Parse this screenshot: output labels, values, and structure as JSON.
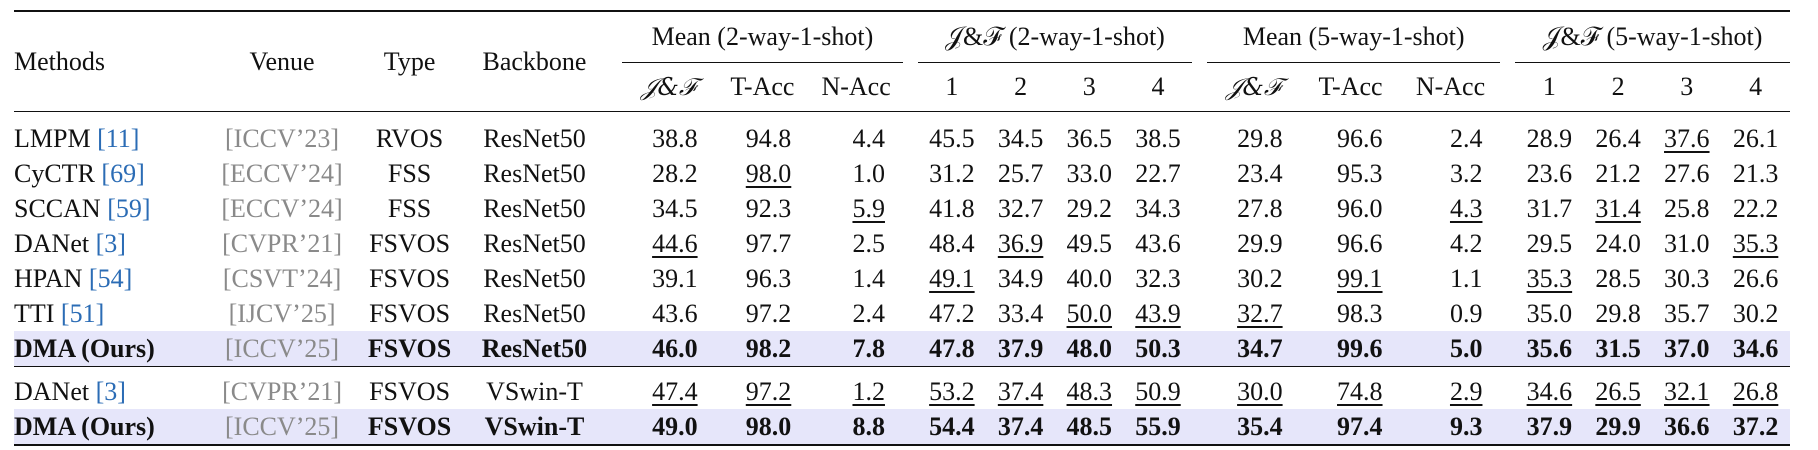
{
  "header": {
    "methods": "Methods",
    "venue": "Venue",
    "type": "Type",
    "backbone": "Backbone",
    "groups": [
      "Mean (2-way-1-shot)",
      "𝒥&ℱ (2-way-1-shot)",
      "Mean (5-way-1-shot)",
      "𝒥&ℱ (5-way-1-shot)"
    ],
    "mean_cols": [
      "𝒥&ℱ",
      "T-Acc",
      "N-Acc"
    ],
    "jf_cols": [
      "1",
      "2",
      "3",
      "4"
    ]
  },
  "rows": [
    {
      "method": "LMPM",
      "ref": "[11]",
      "venue": "[ICCV’23]",
      "type": "RVOS",
      "backbone": "ResNet50",
      "ours": false,
      "vals": [
        "38.8",
        "94.8",
        "4.4",
        "45.5",
        "34.5",
        "36.5",
        "38.5",
        "29.8",
        "96.6",
        "2.4",
        "28.9",
        "26.4",
        "37.6",
        "26.1"
      ]
    },
    {
      "method": "CyCTR",
      "ref": "[69]",
      "venue": "[ECCV’24]",
      "type": "FSS",
      "backbone": "ResNet50",
      "ours": false,
      "vals": [
        "28.2",
        "98.0",
        "1.0",
        "31.2",
        "25.7",
        "33.0",
        "22.7",
        "23.4",
        "95.3",
        "3.2",
        "23.6",
        "21.2",
        "27.6",
        "21.3"
      ]
    },
    {
      "method": "SCCAN",
      "ref": "[59]",
      "venue": "[ECCV’24]",
      "type": "FSS",
      "backbone": "ResNet50",
      "ours": false,
      "vals": [
        "34.5",
        "92.3",
        "5.9",
        "41.8",
        "32.7",
        "29.2",
        "34.3",
        "27.8",
        "96.0",
        "4.3",
        "31.7",
        "31.4",
        "25.8",
        "22.2"
      ]
    },
    {
      "method": "DANet",
      "ref": "[3]",
      "venue": "[CVPR’21]",
      "type": "FSVOS",
      "backbone": "ResNet50",
      "ours": false,
      "vals": [
        "44.6",
        "97.7",
        "2.5",
        "48.4",
        "36.9",
        "49.5",
        "43.6",
        "29.9",
        "96.6",
        "4.2",
        "29.5",
        "24.0",
        "31.0",
        "35.3"
      ]
    },
    {
      "method": "HPAN",
      "ref": "[54]",
      "venue": "[CSVT’24]",
      "type": "FSVOS",
      "backbone": "ResNet50",
      "ours": false,
      "vals": [
        "39.1",
        "96.3",
        "1.4",
        "49.1",
        "34.9",
        "40.0",
        "32.3",
        "30.2",
        "99.1",
        "1.1",
        "35.3",
        "28.5",
        "30.3",
        "26.6"
      ]
    },
    {
      "method": "TTI",
      "ref": "[51]",
      "venue": "[IJCV’25]",
      "type": "FSVOS",
      "backbone": "ResNet50",
      "ours": false,
      "vals": [
        "43.6",
        "97.2",
        "2.4",
        "47.2",
        "33.4",
        "50.0",
        "43.9",
        "32.7",
        "98.3",
        "0.9",
        "35.0",
        "29.8",
        "35.7",
        "30.2"
      ]
    },
    {
      "method": "DMA (Ours)",
      "ref": "",
      "venue": "[ICCV’25]",
      "type": "FSVOS",
      "backbone": "ResNet50",
      "ours": true,
      "vals": [
        "46.0",
        "98.2",
        "7.8",
        "47.8",
        "37.9",
        "48.0",
        "50.3",
        "34.7",
        "99.6",
        "5.0",
        "35.6",
        "31.5",
        "37.0",
        "34.6"
      ]
    },
    {
      "method": "DANet",
      "ref": "[3]",
      "venue": "[CVPR’21]",
      "type": "FSVOS",
      "backbone": "VSwin-T",
      "ours": false,
      "vals": [
        "47.4",
        "97.2",
        "1.2",
        "53.2",
        "37.4",
        "48.3",
        "50.9",
        "30.0",
        "74.8",
        "2.9",
        "34.6",
        "26.5",
        "32.1",
        "26.8"
      ]
    },
    {
      "method": "DMA (Ours)",
      "ref": "",
      "venue": "[ICCV’25]",
      "type": "FSVOS",
      "backbone": "VSwin-T",
      "ours": true,
      "vals": [
        "49.0",
        "98.0",
        "8.8",
        "54.4",
        "37.4",
        "48.5",
        "55.9",
        "35.4",
        "97.4",
        "9.3",
        "37.9",
        "29.9",
        "36.6",
        "37.2"
      ]
    }
  ],
  "underlined": [
    [
      12
    ],
    [
      1
    ],
    [
      2,
      9,
      11
    ],
    [
      0,
      4,
      13
    ],
    [
      3,
      8,
      10
    ],
    [
      5,
      6,
      7
    ],
    [],
    [
      0,
      1,
      2,
      3,
      4,
      5,
      6,
      7,
      8,
      9,
      10,
      11,
      12,
      13
    ],
    []
  ]
}
